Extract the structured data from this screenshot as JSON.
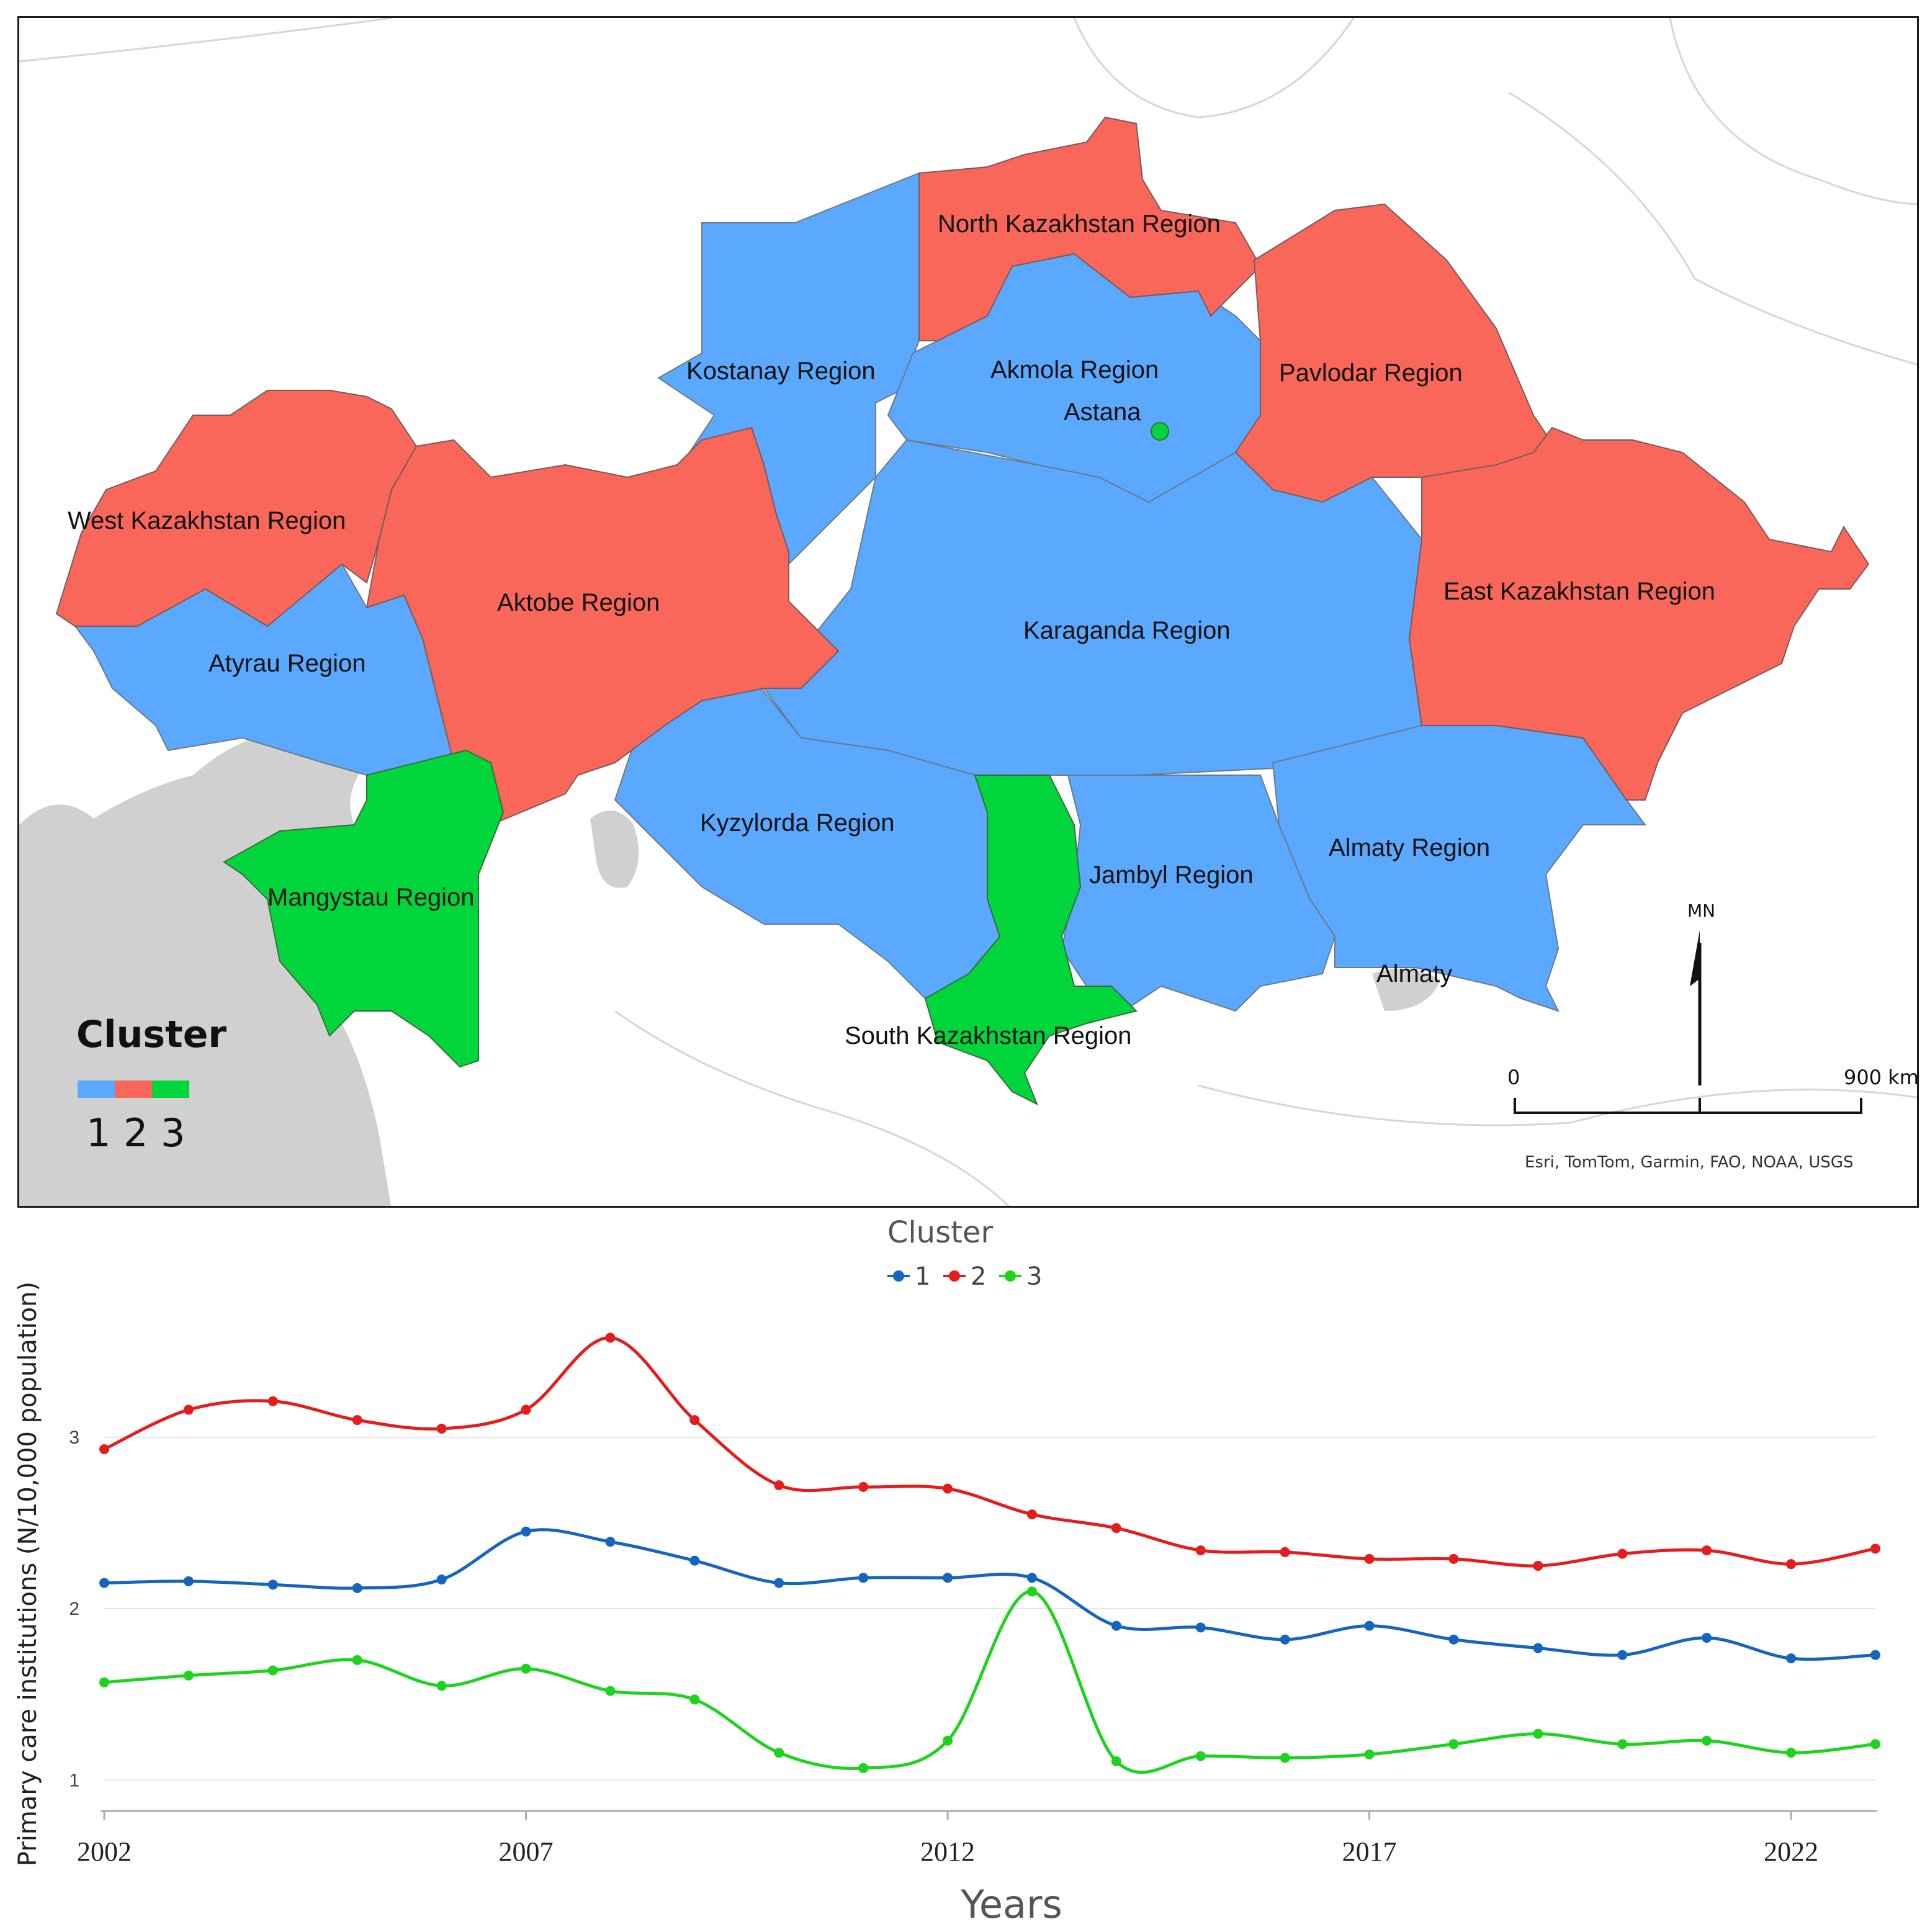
{
  "map": {
    "regions": [
      {
        "name": "North Kazakhstan Region",
        "cluster": 2
      },
      {
        "name": "Kostanay Region",
        "cluster": 1
      },
      {
        "name": "Akmola Region",
        "cluster": 1
      },
      {
        "name": "Astana",
        "cluster": 3
      },
      {
        "name": "Pavlodar Region",
        "cluster": 2
      },
      {
        "name": "West Kazakhstan Region",
        "cluster": 2
      },
      {
        "name": "Aktobe Region",
        "cluster": 2
      },
      {
        "name": "Karaganda Region",
        "cluster": 1
      },
      {
        "name": "East Kazakhstan Region",
        "cluster": 2
      },
      {
        "name": "Atyrau Region",
        "cluster": 1
      },
      {
        "name": "Kyzylorda Region",
        "cluster": 1
      },
      {
        "name": "Almaty Region",
        "cluster": 1
      },
      {
        "name": "Jambyl Region",
        "cluster": 1
      },
      {
        "name": "Mangystau Region",
        "cluster": 3
      },
      {
        "name": "Almaty",
        "cluster": 1
      },
      {
        "name": "South Kazakhstan Region",
        "cluster": 3
      }
    ],
    "legend": {
      "title": "Cluster",
      "items": [
        "1",
        "2",
        "3"
      ]
    },
    "north_label": "MN",
    "scale": {
      "start": "0",
      "end": "900 km"
    },
    "attribution": "Esri, TomTom, Garmin, FAO, NOAA, USGS",
    "colors": {
      "cluster1": "#5aa9ff",
      "cluster2": "#f9675a",
      "cluster3": "#00d63c",
      "water": "#d0d0d0"
    }
  },
  "chart_data": {
    "type": "line",
    "legend_title": "Cluster",
    "x": [
      2002,
      2003,
      2004,
      2005,
      2006,
      2007,
      2008,
      2009,
      2010,
      2011,
      2012,
      2013,
      2014,
      2015,
      2016,
      2017,
      2018,
      2019,
      2020,
      2021,
      2022,
      2023
    ],
    "x_ticks": [
      "2002",
      "2007",
      "2012",
      "2017",
      "2022"
    ],
    "y_ticks": [
      "1",
      "2",
      "3"
    ],
    "ylim": [
      0.82,
      3.6
    ],
    "xlabel": "Years",
    "ylabel": "Primary care institutions (N/10,000 population)",
    "grid": true,
    "series": [
      {
        "name": "1",
        "color": "#1565c0",
        "values": [
          2.15,
          2.16,
          2.14,
          2.12,
          2.17,
          2.45,
          2.39,
          2.28,
          2.15,
          2.18,
          2.18,
          2.18,
          1.9,
          1.89,
          1.82,
          1.9,
          1.82,
          1.77,
          1.73,
          1.83,
          1.71,
          1.73
        ]
      },
      {
        "name": "2",
        "color": "#e51c1c",
        "values": [
          2.93,
          3.16,
          3.21,
          3.1,
          3.05,
          3.16,
          3.58,
          3.1,
          2.72,
          2.71,
          2.7,
          2.55,
          2.47,
          2.34,
          2.33,
          2.29,
          2.29,
          2.25,
          2.32,
          2.34,
          2.26,
          2.35
        ]
      },
      {
        "name": "3",
        "color": "#1ed31e",
        "values": [
          1.57,
          1.61,
          1.64,
          1.7,
          1.55,
          1.65,
          1.52,
          1.47,
          1.16,
          1.07,
          1.23,
          2.1,
          1.11,
          1.14,
          1.13,
          1.15,
          1.21,
          1.27,
          1.21,
          1.23,
          1.16,
          1.21
        ]
      }
    ]
  }
}
